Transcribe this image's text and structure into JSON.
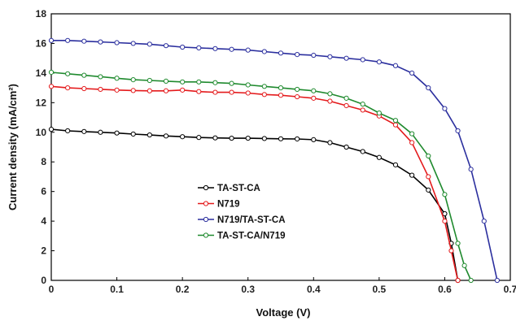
{
  "chart_data": {
    "type": "line",
    "xlabel": "Voltage (V)",
    "ylabel": "Current density (mA/cm²)",
    "xlim": [
      0,
      0.7
    ],
    "ylim": [
      0,
      18
    ],
    "xticks": [
      "0",
      "0.1",
      "0.2",
      "0.3",
      "0.4",
      "0.5",
      "0.6",
      "0.7"
    ],
    "yticks": [
      "0",
      "2",
      "4",
      "6",
      "8",
      "10",
      "12",
      "14",
      "16",
      "18"
    ],
    "grid": false,
    "legend_position": "center-left",
    "series": [
      {
        "name": "TA-ST-CA",
        "color": "#000000",
        "x": [
          0,
          0.025,
          0.05,
          0.075,
          0.1,
          0.125,
          0.15,
          0.175,
          0.2,
          0.225,
          0.25,
          0.275,
          0.3,
          0.325,
          0.35,
          0.375,
          0.4,
          0.425,
          0.45,
          0.475,
          0.5,
          0.525,
          0.55,
          0.575,
          0.6,
          0.61,
          0.62
        ],
        "y": [
          10.2,
          10.1,
          10.05,
          10.0,
          9.95,
          9.88,
          9.82,
          9.75,
          9.7,
          9.65,
          9.62,
          9.6,
          9.6,
          9.58,
          9.56,
          9.55,
          9.5,
          9.3,
          9.0,
          8.7,
          8.3,
          7.8,
          7.1,
          6.1,
          4.5,
          2.5,
          0
        ]
      },
      {
        "name": "N719",
        "color": "#e41a1c",
        "x": [
          0,
          0.025,
          0.05,
          0.075,
          0.1,
          0.125,
          0.15,
          0.175,
          0.2,
          0.225,
          0.25,
          0.275,
          0.3,
          0.325,
          0.35,
          0.375,
          0.4,
          0.425,
          0.45,
          0.475,
          0.5,
          0.525,
          0.55,
          0.575,
          0.6,
          0.61,
          0.62
        ],
        "y": [
          13.1,
          13.0,
          12.95,
          12.9,
          12.85,
          12.82,
          12.8,
          12.8,
          12.85,
          12.75,
          12.7,
          12.7,
          12.65,
          12.55,
          12.5,
          12.4,
          12.3,
          12.1,
          11.8,
          11.5,
          11.1,
          10.5,
          9.3,
          7.0,
          4.0,
          2.0,
          0
        ]
      },
      {
        "name": "N719/TA-ST-CA",
        "color": "#2b2f9e",
        "x": [
          0,
          0.025,
          0.05,
          0.075,
          0.1,
          0.125,
          0.15,
          0.175,
          0.2,
          0.225,
          0.25,
          0.275,
          0.3,
          0.325,
          0.35,
          0.375,
          0.4,
          0.425,
          0.45,
          0.475,
          0.5,
          0.525,
          0.55,
          0.575,
          0.6,
          0.62,
          0.64,
          0.66,
          0.68
        ],
        "y": [
          16.2,
          16.2,
          16.15,
          16.1,
          16.05,
          16.0,
          15.95,
          15.85,
          15.75,
          15.7,
          15.65,
          15.6,
          15.55,
          15.45,
          15.35,
          15.25,
          15.2,
          15.1,
          15.0,
          14.9,
          14.75,
          14.5,
          14.0,
          13.0,
          11.6,
          10.1,
          7.5,
          4.0,
          0
        ]
      },
      {
        "name": "TA-ST-CA/N719",
        "color": "#1f8a2e",
        "x": [
          0,
          0.025,
          0.05,
          0.075,
          0.1,
          0.125,
          0.15,
          0.175,
          0.2,
          0.225,
          0.25,
          0.275,
          0.3,
          0.325,
          0.35,
          0.375,
          0.4,
          0.425,
          0.45,
          0.475,
          0.5,
          0.525,
          0.55,
          0.575,
          0.6,
          0.62,
          0.63,
          0.64
        ],
        "y": [
          14.05,
          13.95,
          13.85,
          13.75,
          13.65,
          13.55,
          13.5,
          13.45,
          13.4,
          13.4,
          13.35,
          13.3,
          13.2,
          13.1,
          13.0,
          12.9,
          12.8,
          12.6,
          12.3,
          11.9,
          11.3,
          10.8,
          9.9,
          8.4,
          5.8,
          2.5,
          1.0,
          0
        ]
      }
    ]
  }
}
